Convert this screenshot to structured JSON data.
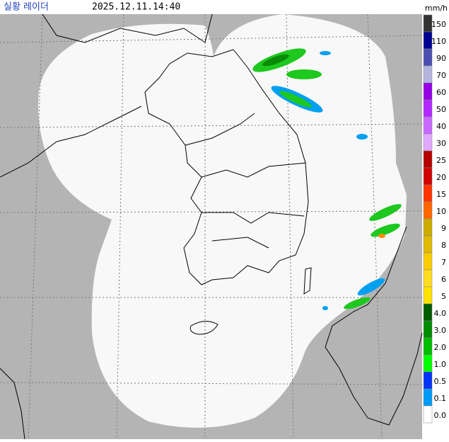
{
  "header": {
    "title": "실황 레이더",
    "time": "2025.12.11.14:40",
    "unit": "mm/h"
  },
  "legend": {
    "items": [
      {
        "label": "150",
        "color": "#333333"
      },
      {
        "label": "110",
        "color": "#000390"
      },
      {
        "label": "90",
        "color": "#4c4eb1"
      },
      {
        "label": "70",
        "color": "#b3b4de"
      },
      {
        "label": "60",
        "color": "#9300e4"
      },
      {
        "label": "50",
        "color": "#b329ff"
      },
      {
        "label": "40",
        "color": "#c969ff"
      },
      {
        "label": "30",
        "color": "#e0a9ff"
      },
      {
        "label": "25",
        "color": "#b40000"
      },
      {
        "label": "20",
        "color": "#d20000"
      },
      {
        "label": "15",
        "color": "#ff3300"
      },
      {
        "label": "10",
        "color": "#ff6600"
      },
      {
        "label": "9",
        "color": "#ccaa00"
      },
      {
        "label": "8",
        "color": "#e0b900"
      },
      {
        "label": "7",
        "color": "#f9cd00"
      },
      {
        "label": "6",
        "color": "#ffdc1f"
      },
      {
        "label": "5",
        "color": "#ffe100"
      },
      {
        "label": "4.0",
        "color": "#005a00"
      },
      {
        "label": "3.0",
        "color": "#008c00"
      },
      {
        "label": "2.0",
        "color": "#00be00"
      },
      {
        "label": "1.0",
        "color": "#00ff00"
      },
      {
        "label": "0.5",
        "color": "#0033f5"
      },
      {
        "label": "0.1",
        "color": "#009bf5"
      },
      {
        "label": "0.0",
        "color": "#ffffff"
      }
    ]
  }
}
